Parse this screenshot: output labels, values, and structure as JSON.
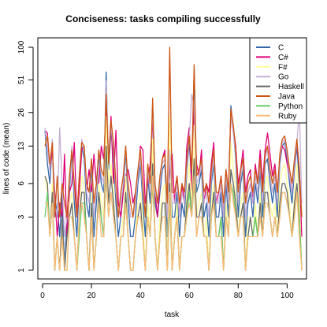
{
  "chart_data": {
    "type": "line",
    "title": "Conciseness: tasks compiling successfully",
    "xlabel": "task",
    "ylabel": "lines of code (mean)",
    "y_scale": "log",
    "xlim": [
      0,
      106
    ],
    "ylim": [
      1,
      100
    ],
    "x_ticks": [
      "0",
      "20",
      "40",
      "60",
      "80",
      "100"
    ],
    "y_ticks": [
      "1",
      "3",
      "6",
      "13",
      "26",
      "51",
      "100"
    ],
    "x_tick_values": [
      0,
      20,
      40,
      60,
      80,
      100
    ],
    "y_tick_values": [
      1,
      3,
      6,
      13,
      26,
      51,
      100
    ],
    "grid": false,
    "legend_position": "top-right",
    "x": [
      1,
      2,
      3,
      4,
      5,
      6,
      7,
      8,
      9,
      10,
      11,
      12,
      13,
      14,
      15,
      16,
      17,
      18,
      19,
      20,
      21,
      22,
      23,
      24,
      25,
      26,
      27,
      28,
      29,
      30,
      31,
      32,
      33,
      34,
      35,
      36,
      37,
      38,
      39,
      40,
      41,
      42,
      43,
      44,
      45,
      46,
      47,
      48,
      49,
      50,
      51,
      52,
      53,
      54,
      55,
      56,
      57,
      58,
      59,
      60,
      61,
      62,
      63,
      64,
      65,
      66,
      67,
      68,
      69,
      70,
      71,
      72,
      73,
      74,
      75,
      76,
      77,
      78,
      79,
      80,
      81,
      82,
      83,
      84,
      85,
      86,
      87,
      88,
      89,
      90,
      91,
      92,
      93,
      94,
      95,
      96,
      97,
      98,
      99,
      100,
      101,
      102,
      103,
      104,
      105,
      106
    ],
    "series": [
      {
        "name": "C",
        "color": "#3366aa",
        "values": [
          18,
          9,
          6,
          14,
          3,
          4,
          2,
          5,
          1,
          3,
          5,
          12,
          4,
          2,
          6,
          13,
          10,
          4,
          3,
          9,
          2,
          4,
          11,
          6,
          5,
          60,
          8,
          18,
          10,
          4,
          2,
          3,
          5,
          12,
          4,
          2,
          2,
          3,
          6,
          9,
          4,
          2,
          7,
          4,
          30,
          4,
          3,
          5,
          8,
          9,
          2,
          10,
          3,
          3,
          5,
          2,
          4,
          3,
          8,
          14,
          6,
          64,
          5,
          6,
          8,
          3,
          4,
          2,
          6,
          9,
          3,
          3,
          5,
          2,
          6,
          3,
          30,
          18,
          10,
          3,
          6,
          8,
          2,
          4,
          5,
          3,
          6,
          4,
          8,
          3,
          9,
          10,
          6,
          4,
          6,
          3,
          9,
          13,
          14,
          10,
          6,
          4,
          8,
          13,
          6,
          3
        ]
      },
      {
        "name": "C#",
        "color": "#dd0077",
        "values": [
          18,
          17,
          8,
          12,
          5,
          2,
          4,
          3,
          11,
          2,
          5,
          6,
          14,
          3,
          5,
          12,
          13,
          5,
          8,
          5,
          11,
          6,
          6,
          13,
          10,
          27,
          9,
          24,
          6,
          18,
          4,
          3,
          5,
          7,
          8,
          6,
          4,
          5,
          7,
          13,
          12,
          4,
          6,
          9,
          24,
          5,
          3,
          6,
          10,
          12,
          3,
          9,
          11,
          4,
          7,
          3,
          6,
          4,
          13,
          19,
          5,
          29,
          9,
          7,
          12,
          4,
          6,
          5,
          9,
          14,
          4,
          5,
          7,
          3,
          8,
          5,
          26,
          19,
          13,
          6,
          8,
          12,
          5,
          7,
          8,
          4,
          9,
          6,
          12,
          6,
          12,
          17,
          11,
          7,
          9,
          5,
          10,
          13,
          12,
          9,
          7,
          5,
          9,
          14,
          8,
          2
        ]
      },
      {
        "name": "F#",
        "color": "#ffff99",
        "values": [
          7,
          5,
          2,
          6,
          1,
          2,
          1,
          3,
          1,
          1,
          4,
          5,
          2,
          1,
          3,
          7,
          6,
          2,
          1,
          5,
          1,
          2,
          6,
          4,
          3,
          24,
          6,
          9,
          5,
          2,
          1,
          2,
          3,
          7,
          2,
          1,
          1,
          2,
          4,
          5,
          3,
          1,
          4,
          2,
          15,
          2,
          1,
          3,
          5,
          6,
          1,
          24,
          1,
          2,
          4,
          1,
          2,
          2,
          5,
          9,
          4,
          20,
          3,
          4,
          5,
          2,
          3,
          1,
          4,
          6,
          2,
          2,
          3,
          1,
          4,
          2,
          14,
          8,
          5,
          2,
          4,
          5,
          1,
          3,
          3,
          2,
          4,
          2,
          5,
          2,
          6,
          7,
          4,
          3,
          4,
          2,
          6,
          8,
          9,
          6,
          4,
          2,
          5,
          9,
          4,
          1
        ]
      },
      {
        "name": "Go",
        "color": "#c5b0d5",
        "values": [
          19,
          12,
          8,
          15,
          4,
          3,
          19,
          6,
          2,
          3,
          6,
          13,
          5,
          3,
          7,
          15,
          12,
          5,
          4,
          10,
          3,
          5,
          12,
          7,
          6,
          50,
          10,
          20,
          12,
          5,
          3,
          4,
          6,
          13,
          5,
          3,
          3,
          4,
          7,
          10,
          5,
          3,
          8,
          5,
          32,
          5,
          4,
          6,
          9,
          10,
          3,
          12,
          4,
          4,
          6,
          3,
          5,
          4,
          9,
          15,
          38,
          30,
          6,
          7,
          9,
          4,
          5,
          3,
          7,
          10,
          4,
          4,
          6,
          3,
          7,
          4,
          25,
          17,
          11,
          4,
          7,
          9,
          3,
          5,
          6,
          4,
          7,
          5,
          9,
          4,
          10,
          12,
          7,
          5,
          7,
          4,
          10,
          14,
          15,
          11,
          7,
          5,
          9,
          14,
          28,
          4
        ]
      },
      {
        "name": "Haskell",
        "color": "#666666",
        "values": [
          7,
          6,
          2,
          5,
          1,
          2,
          1,
          3,
          1,
          2,
          3,
          4,
          2,
          1,
          3,
          5,
          5,
          2,
          1,
          4,
          1,
          2,
          5,
          3,
          2,
          13,
          4,
          7,
          4,
          2,
          1,
          2,
          2,
          5,
          2,
          1,
          1,
          2,
          3,
          4,
          2,
          1,
          3,
          2,
          9,
          2,
          1,
          2,
          4,
          4,
          1,
          6,
          1,
          2,
          3,
          1,
          2,
          2,
          4,
          6,
          3,
          10,
          3,
          3,
          4,
          2,
          2,
          1,
          3,
          5,
          2,
          2,
          3,
          1,
          3,
          2,
          8,
          6,
          4,
          2,
          3,
          4,
          1,
          2,
          3,
          2,
          3,
          2,
          4,
          2,
          5,
          5,
          3,
          2,
          3,
          2,
          4,
          6,
          6,
          5,
          3,
          2,
          4,
          6,
          3,
          1
        ]
      },
      {
        "name": "Java",
        "color": "#cc5511",
        "values": [
          13,
          16,
          9,
          14,
          3,
          7,
          3,
          6,
          4,
          3,
          7,
          12,
          6,
          3,
          7,
          14,
          13,
          6,
          5,
          10,
          4,
          6,
          12,
          8,
          7,
          38,
          9,
          22,
          14,
          6,
          3,
          5,
          7,
          13,
          6,
          4,
          3,
          5,
          8,
          12,
          6,
          3,
          9,
          6,
          35,
          6,
          4,
          7,
          10,
          11,
          4,
          100,
          5,
          5,
          7,
          4,
          6,
          5,
          10,
          16,
          8,
          70,
          7,
          8,
          10,
          5,
          6,
          4,
          8,
          12,
          5,
          5,
          7,
          4,
          8,
          5,
          28,
          20,
          12,
          5,
          8,
          10,
          4,
          6,
          7,
          5,
          8,
          6,
          10,
          5,
          11,
          13,
          8,
          6,
          8,
          5,
          11,
          15,
          16,
          12,
          8,
          6,
          10,
          15,
          8,
          3
        ]
      },
      {
        "name": "Python",
        "color": "#66cc66",
        "values": [
          3,
          5,
          2,
          4,
          1,
          2,
          1,
          2,
          1,
          1,
          3,
          3,
          2,
          1,
          2,
          4,
          4,
          2,
          1,
          3,
          1,
          2,
          4,
          3,
          2,
          7,
          3,
          5,
          3,
          2,
          1,
          2,
          2,
          4,
          2,
          1,
          1,
          2,
          3,
          3,
          2,
          1,
          3,
          2,
          6,
          2,
          1,
          2,
          3,
          3,
          1,
          4,
          1,
          2,
          3,
          1,
          2,
          2,
          3,
          5,
          3,
          6,
          2,
          3,
          3,
          2,
          2,
          1,
          3,
          4,
          2,
          2,
          3,
          1,
          3,
          2,
          6,
          5,
          3,
          2,
          3,
          3,
          1,
          2,
          2,
          2,
          3,
          2,
          3,
          2,
          4,
          4,
          3,
          2,
          3,
          2,
          3,
          5,
          5,
          4,
          3,
          2,
          3,
          5,
          3,
          1
        ]
      },
      {
        "name": "Ruby",
        "color": "#ffbb77",
        "values": [
          4,
          4,
          2,
          4,
          1,
          2,
          1,
          2,
          1,
          1,
          3,
          3,
          2,
          1,
          3,
          4,
          3,
          2,
          1,
          3,
          1,
          2,
          4,
          2,
          2,
          8,
          3,
          5,
          3,
          2,
          1,
          2,
          2,
          4,
          2,
          1,
          1,
          2,
          3,
          3,
          2,
          1,
          3,
          2,
          7,
          2,
          1,
          2,
          3,
          3,
          1,
          5,
          1,
          2,
          3,
          1,
          2,
          2,
          3,
          4,
          3,
          7,
          2,
          3,
          3,
          2,
          2,
          1,
          3,
          4,
          2,
          2,
          2,
          1,
          3,
          2,
          6,
          4,
          3,
          2,
          3,
          3,
          1,
          2,
          2,
          2,
          2,
          2,
          3,
          2,
          4,
          4,
          3,
          2,
          3,
          2,
          3,
          5,
          5,
          4,
          3,
          2,
          3,
          5,
          2,
          1
        ]
      }
    ]
  }
}
